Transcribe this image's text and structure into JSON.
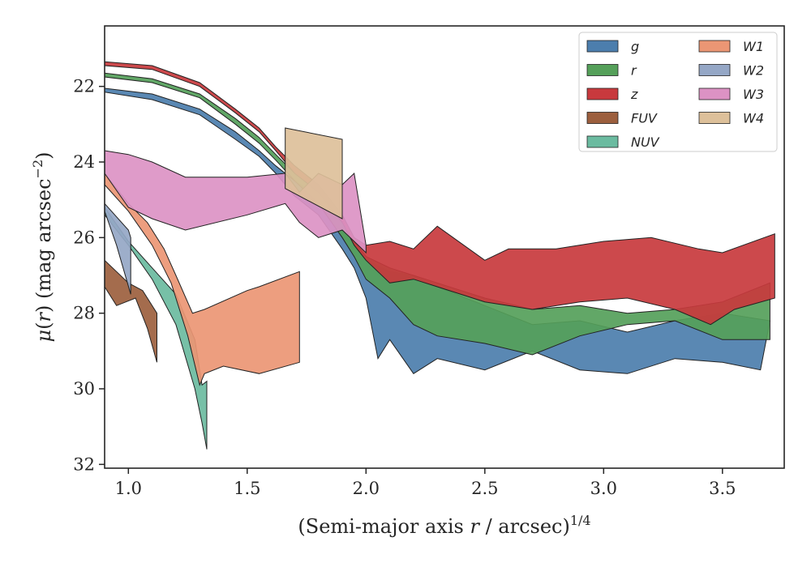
{
  "chart_data": {
    "type": "area",
    "xlabel": "(Semi-major axis r / arcsec)^1/4",
    "ylabel": "μ(r) (mag arcsec^−2)",
    "xlim": [
      0.9,
      3.76
    ],
    "ylim": [
      32.1,
      20.4
    ],
    "y_inverted": true,
    "grid": false,
    "legend_position": "top-right",
    "xticks": [
      1.0,
      1.5,
      2.0,
      2.5,
      3.0,
      3.5
    ],
    "yticks": [
      22,
      24,
      26,
      28,
      30,
      32
    ],
    "series": [
      {
        "name": "g",
        "color": "#4c7ead",
        "upper": [
          [
            0.9,
            22.05
          ],
          [
            1.1,
            22.2
          ],
          [
            1.3,
            22.6
          ],
          [
            1.45,
            23.2
          ],
          [
            1.55,
            23.7
          ],
          [
            1.62,
            24.1
          ],
          [
            1.7,
            24.5
          ],
          [
            1.8,
            24.9
          ],
          [
            1.9,
            25.6
          ],
          [
            1.95,
            26.2
          ],
          [
            2.0,
            26.6
          ],
          [
            2.1,
            26.9
          ],
          [
            2.2,
            27.0
          ],
          [
            2.3,
            27.3
          ],
          [
            2.5,
            27.8
          ],
          [
            2.7,
            28.3
          ],
          [
            2.9,
            28.2
          ],
          [
            3.1,
            28.5
          ],
          [
            3.3,
            28.2
          ],
          [
            3.5,
            28.0
          ],
          [
            3.7,
            28.2
          ]
        ],
        "lower": [
          [
            0.9,
            22.15
          ],
          [
            1.1,
            22.35
          ],
          [
            1.3,
            22.75
          ],
          [
            1.45,
            23.4
          ],
          [
            1.55,
            23.85
          ],
          [
            1.62,
            24.3
          ],
          [
            1.7,
            24.9
          ],
          [
            1.8,
            25.4
          ],
          [
            1.9,
            26.3
          ],
          [
            1.95,
            26.8
          ],
          [
            2.0,
            27.6
          ],
          [
            2.05,
            29.2
          ],
          [
            2.1,
            28.7
          ],
          [
            2.2,
            29.6
          ],
          [
            2.3,
            29.2
          ],
          [
            2.5,
            29.5
          ],
          [
            2.7,
            29.0
          ],
          [
            2.9,
            29.5
          ],
          [
            3.1,
            29.6
          ],
          [
            3.3,
            29.2
          ],
          [
            3.5,
            29.3
          ],
          [
            3.66,
            29.5
          ]
        ]
      },
      {
        "name": "r",
        "color": "#55a05a",
        "upper": [
          [
            0.9,
            21.65
          ],
          [
            1.1,
            21.8
          ],
          [
            1.3,
            22.2
          ],
          [
            1.45,
            22.85
          ],
          [
            1.55,
            23.35
          ],
          [
            1.62,
            23.8
          ],
          [
            1.7,
            24.3
          ],
          [
            1.8,
            24.8
          ],
          [
            1.9,
            25.5
          ],
          [
            1.95,
            26.1
          ],
          [
            2.0,
            26.5
          ],
          [
            2.1,
            26.8
          ],
          [
            2.2,
            27.0
          ],
          [
            2.3,
            27.2
          ],
          [
            2.5,
            27.6
          ],
          [
            2.7,
            27.9
          ],
          [
            2.9,
            27.8
          ],
          [
            3.1,
            28.0
          ],
          [
            3.3,
            27.9
          ],
          [
            3.5,
            27.7
          ],
          [
            3.7,
            27.2
          ]
        ],
        "lower": [
          [
            0.9,
            21.75
          ],
          [
            1.1,
            21.9
          ],
          [
            1.3,
            22.3
          ],
          [
            1.45,
            23.0
          ],
          [
            1.55,
            23.5
          ],
          [
            1.62,
            23.95
          ],
          [
            1.7,
            24.5
          ],
          [
            1.8,
            25.1
          ],
          [
            1.9,
            26.0
          ],
          [
            1.95,
            26.5
          ],
          [
            2.0,
            27.1
          ],
          [
            2.1,
            27.6
          ],
          [
            2.2,
            28.3
          ],
          [
            2.3,
            28.6
          ],
          [
            2.5,
            28.8
          ],
          [
            2.7,
            29.1
          ],
          [
            2.9,
            28.6
          ],
          [
            3.1,
            28.3
          ],
          [
            3.3,
            28.2
          ],
          [
            3.5,
            28.7
          ],
          [
            3.7,
            28.7
          ]
        ]
      },
      {
        "name": "z",
        "color": "#c8393d",
        "upper": [
          [
            0.9,
            21.35
          ],
          [
            1.1,
            21.45
          ],
          [
            1.3,
            21.9
          ],
          [
            1.45,
            22.6
          ],
          [
            1.55,
            23.1
          ],
          [
            1.62,
            23.6
          ],
          [
            1.7,
            24.1
          ],
          [
            1.8,
            24.6
          ],
          [
            1.9,
            25.4
          ],
          [
            1.95,
            26.0
          ],
          [
            2.0,
            26.2
          ],
          [
            2.1,
            26.1
          ],
          [
            2.2,
            26.3
          ],
          [
            2.3,
            25.7
          ],
          [
            2.5,
            26.6
          ],
          [
            2.6,
            26.3
          ],
          [
            2.8,
            26.3
          ],
          [
            3.0,
            26.1
          ],
          [
            3.2,
            26.0
          ],
          [
            3.4,
            26.3
          ],
          [
            3.5,
            26.4
          ],
          [
            3.72,
            25.9
          ]
        ],
        "lower": [
          [
            0.9,
            21.45
          ],
          [
            1.1,
            21.55
          ],
          [
            1.3,
            22.0
          ],
          [
            1.45,
            22.7
          ],
          [
            1.55,
            23.2
          ],
          [
            1.62,
            23.7
          ],
          [
            1.7,
            24.3
          ],
          [
            1.8,
            24.8
          ],
          [
            1.9,
            25.6
          ],
          [
            1.95,
            26.2
          ],
          [
            2.0,
            26.6
          ],
          [
            2.1,
            27.2
          ],
          [
            2.2,
            27.1
          ],
          [
            2.3,
            27.3
          ],
          [
            2.5,
            27.7
          ],
          [
            2.7,
            27.9
          ],
          [
            2.9,
            27.7
          ],
          [
            3.1,
            27.6
          ],
          [
            3.3,
            27.9
          ],
          [
            3.45,
            28.3
          ],
          [
            3.55,
            27.9
          ],
          [
            3.72,
            27.6
          ]
        ]
      },
      {
        "name": "FUV",
        "color": "#9c5f3e",
        "upper": [
          [
            0.9,
            26.6
          ],
          [
            1.0,
            27.2
          ],
          [
            1.06,
            27.4
          ],
          [
            1.12,
            28.0
          ]
        ],
        "lower": [
          [
            0.9,
            27.3
          ],
          [
            0.95,
            27.8
          ],
          [
            1.03,
            27.6
          ],
          [
            1.08,
            28.4
          ],
          [
            1.12,
            29.3
          ]
        ]
      },
      {
        "name": "NUV",
        "color": "#6bbba0",
        "upper": [
          [
            0.9,
            25.2
          ],
          [
            1.0,
            26.1
          ],
          [
            1.1,
            26.8
          ],
          [
            1.2,
            27.5
          ],
          [
            1.28,
            28.7
          ],
          [
            1.31,
            29.9
          ],
          [
            1.33,
            29.8
          ]
        ],
        "lower": [
          [
            0.9,
            25.4
          ],
          [
            1.0,
            26.2
          ],
          [
            1.1,
            27.1
          ],
          [
            1.2,
            28.3
          ],
          [
            1.28,
            30.0
          ],
          [
            1.31,
            30.9
          ],
          [
            1.33,
            31.6
          ]
        ]
      },
      {
        "name": "W1",
        "color": "#eb9674",
        "upper": [
          [
            0.9,
            24.3
          ],
          [
            1.0,
            25.1
          ],
          [
            1.08,
            25.6
          ],
          [
            1.15,
            26.3
          ],
          [
            1.2,
            27.0
          ],
          [
            1.27,
            28.0
          ],
          [
            1.32,
            27.9
          ],
          [
            1.5,
            27.4
          ],
          [
            1.55,
            27.3
          ],
          [
            1.72,
            26.9
          ]
        ],
        "lower": [
          [
            0.9,
            24.6
          ],
          [
            1.0,
            25.3
          ],
          [
            1.1,
            26.2
          ],
          [
            1.18,
            27.2
          ],
          [
            1.25,
            28.6
          ],
          [
            1.3,
            29.9
          ],
          [
            1.32,
            29.6
          ],
          [
            1.4,
            29.4
          ],
          [
            1.55,
            29.6
          ],
          [
            1.72,
            29.3
          ]
        ]
      },
      {
        "name": "W2",
        "color": "#95a7c6",
        "upper": [
          [
            0.9,
            25.1
          ],
          [
            1.0,
            25.8
          ],
          [
            1.01,
            26.0
          ]
        ],
        "lower": [
          [
            0.9,
            25.3
          ],
          [
            0.95,
            26.2
          ],
          [
            1.01,
            27.5
          ]
        ]
      },
      {
        "name": "W3",
        "color": "#dc92c4",
        "upper": [
          [
            0.9,
            23.7
          ],
          [
            1.0,
            23.8
          ],
          [
            1.1,
            24.0
          ],
          [
            1.24,
            24.4
          ],
          [
            1.5,
            24.4
          ],
          [
            1.66,
            24.3
          ],
          [
            1.72,
            24.8
          ],
          [
            1.8,
            24.3
          ],
          [
            1.9,
            24.6
          ],
          [
            1.95,
            24.3
          ],
          [
            2.0,
            26.2
          ]
        ],
        "lower": [
          [
            0.9,
            24.3
          ],
          [
            1.0,
            25.2
          ],
          [
            1.1,
            25.5
          ],
          [
            1.24,
            25.8
          ],
          [
            1.5,
            25.4
          ],
          [
            1.66,
            25.1
          ],
          [
            1.72,
            25.6
          ],
          [
            1.8,
            26.0
          ],
          [
            1.9,
            25.8
          ],
          [
            1.95,
            26.1
          ],
          [
            2.0,
            26.4
          ]
        ]
      },
      {
        "name": "W4",
        "color": "#ddc09a",
        "upper": [
          [
            1.66,
            23.1
          ],
          [
            1.9,
            23.4
          ]
        ],
        "lower": [
          [
            1.66,
            24.7
          ],
          [
            1.9,
            25.5
          ]
        ]
      }
    ]
  }
}
